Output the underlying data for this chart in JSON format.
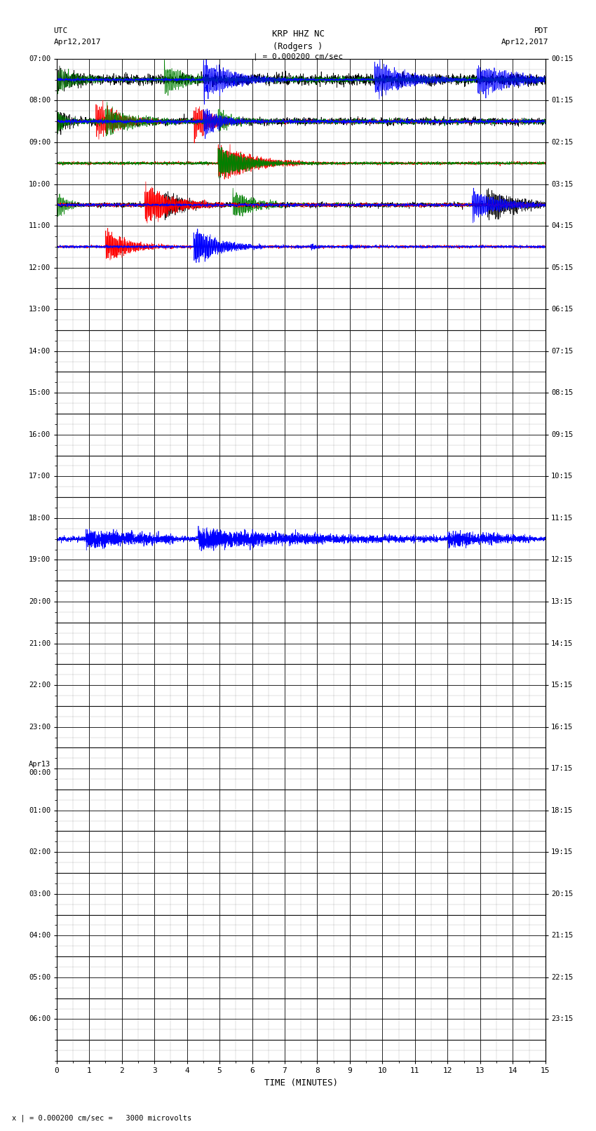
{
  "title_line1": "KRP HHZ NC",
  "title_line2": "(Rodgers )",
  "scale_label": "| = 0.000200 cm/sec",
  "utc_label1": "UTC",
  "utc_label2": "Apr12,2017",
  "pdt_label1": "PDT",
  "pdt_label2": "Apr12,2017",
  "bottom_label": "x | = 0.000200 cm/sec =   3000 microvolts",
  "xlabel": "TIME (MINUTES)",
  "left_yticks": [
    "07:00",
    "08:00",
    "09:00",
    "10:00",
    "11:00",
    "12:00",
    "13:00",
    "14:00",
    "15:00",
    "16:00",
    "17:00",
    "18:00",
    "19:00",
    "20:00",
    "21:00",
    "22:00",
    "23:00",
    "Apr13\n00:00",
    "01:00",
    "02:00",
    "03:00",
    "04:00",
    "05:00",
    "06:00"
  ],
  "right_yticks": [
    "00:15",
    "01:15",
    "02:15",
    "03:15",
    "04:15",
    "05:15",
    "06:15",
    "07:15",
    "08:15",
    "09:15",
    "10:15",
    "11:15",
    "12:15",
    "13:15",
    "14:15",
    "15:15",
    "16:15",
    "17:15",
    "18:15",
    "19:15",
    "20:15",
    "21:15",
    "22:15",
    "23:15"
  ],
  "n_rows": 24,
  "x_max": 15,
  "background": "#ffffff",
  "grid_color": "#000000",
  "centerline_color": "#000000"
}
